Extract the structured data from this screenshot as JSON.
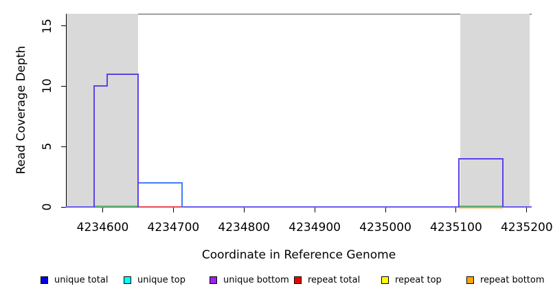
{
  "chart_data": {
    "type": "line",
    "subtype": "step-coverage",
    "title": "",
    "xlabel": "Coordinate in Reference Genome",
    "ylabel": "Read Coverage Depth",
    "xlim": [
      4234548,
      4235207
    ],
    "ylim": [
      0,
      16
    ],
    "x_ticks": [
      4234600,
      4234700,
      4234800,
      4234900,
      4235000,
      4235100,
      4235200
    ],
    "y_ticks": [
      0,
      5,
      10,
      15
    ],
    "grid": false,
    "legend_position": "bottom",
    "shaded_regions": [
      {
        "start": 4234549,
        "end": 4234650
      },
      {
        "start": 4235106,
        "end": 4235204
      }
    ],
    "series": [
      {
        "name": "unique total",
        "legend_color": "#0000EE",
        "render_color": "#3E7FF7",
        "segments": [
          [
            4234588,
            4234606,
            10
          ],
          [
            4234606,
            4234650,
            11
          ],
          [
            4234650,
            4234712,
            2
          ],
          [
            4235104,
            4235166,
            4
          ]
        ]
      },
      {
        "name": "unique top",
        "legend_color": "#00FFFF",
        "render_color": "#00FFFF",
        "segments": [
          [
            4234650,
            4234712,
            2
          ]
        ]
      },
      {
        "name": "unique bottom",
        "legend_color": "#A020F0",
        "render_color": "#5B41E8",
        "segments": [
          [
            4234588,
            4234606,
            10
          ],
          [
            4234606,
            4234650,
            11
          ],
          [
            4235104,
            4235166,
            4
          ]
        ]
      },
      {
        "name": "repeat total",
        "legend_color": "#EE0000",
        "render_color": "#EE4757",
        "segments": []
      },
      {
        "name": "repeat top",
        "legend_color": "#FFFF00",
        "render_color": "#FFFF00",
        "segments": []
      },
      {
        "name": "repeat bottom",
        "legend_color": "#FFA500",
        "render_color": "#F2C18F",
        "segments": []
      }
    ],
    "baseline_value": 0,
    "baseline_overlays": [
      {
        "start": 4234548,
        "end": 4235207,
        "color": "#6A5BEF",
        "dy": 0,
        "h": 2
      },
      {
        "start": 4234588,
        "end": 4234650,
        "color": "#63BD63",
        "dy": -1.5,
        "h": 2
      },
      {
        "start": 4234650,
        "end": 4234712,
        "color": "#EE4757",
        "dy": 0,
        "h": 2
      },
      {
        "start": 4235104,
        "end": 4235166,
        "color": "#63BD63",
        "dy": -1.5,
        "h": 2
      },
      {
        "start": 4235104,
        "end": 4235166,
        "color": "#F2C18F",
        "dy": 2.5,
        "h": 1
      }
    ],
    "colors": {
      "shade": "#D9D9D9",
      "plot_border": "#4D4D4D",
      "axis": "#000000",
      "background": "#FFFFFF"
    }
  },
  "legend": {
    "items": [
      "unique total",
      "unique top",
      "unique bottom",
      "repeat total",
      "repeat top",
      "repeat bottom"
    ]
  }
}
